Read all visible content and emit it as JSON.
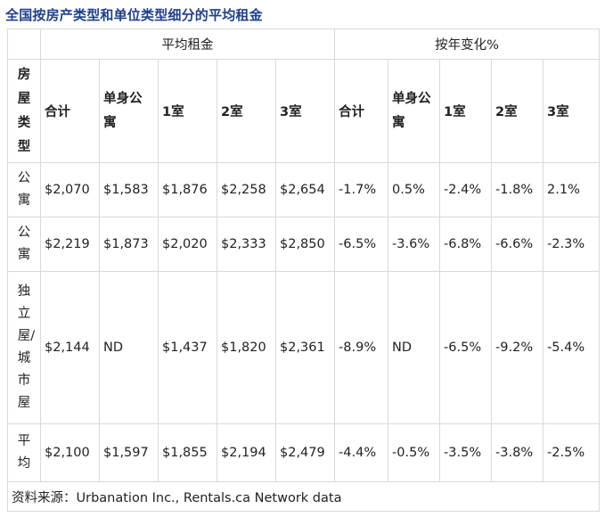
{
  "title": "全国按房产类型和单位类型细分的平均租金",
  "groups": [
    "平均租金",
    "按年变化%"
  ],
  "corner_header": "房屋类型",
  "headers": [
    "合计",
    "单身公寓",
    "1室",
    "2室",
    "3室",
    "合计",
    "单身公寓",
    "1室",
    "2室",
    "3室"
  ],
  "rows": [
    {
      "type": "公寓",
      "values": [
        "$2,070",
        "$1,583",
        "$1,876",
        "$2,258",
        "$2,654",
        "-1.7%",
        "0.5%",
        "-2.4%",
        "-1.8%",
        "2.1%"
      ]
    },
    {
      "type": "公寓",
      "values": [
        "$2,219",
        "$1,873",
        "$2,020",
        "$2,333",
        "$2,850",
        "-6.5%",
        "-3.6%",
        "-6.8%",
        "-6.6%",
        "-2.3%"
      ]
    },
    {
      "type": "独立屋/城市屋",
      "values": [
        "$2,144",
        "ND",
        "$1,437",
        "$1,820",
        "$2,361",
        "-8.9%",
        "ND",
        "-6.5%",
        "-9.2%",
        "-5.4%"
      ]
    },
    {
      "type": "平均",
      "values": [
        "$2,100",
        "$1,597",
        "$1,855",
        "$2,194",
        "$2,479",
        "-4.4%",
        "-0.5%",
        "-3.5%",
        "-3.8%",
        "-2.5%"
      ]
    }
  ],
  "source": "资料来源：Urbanation Inc., Rentals.ca Network data"
}
